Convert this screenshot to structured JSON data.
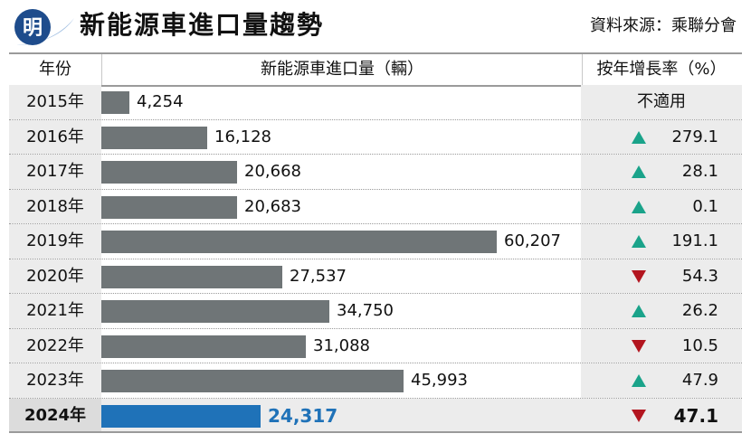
{
  "logo": {
    "text": "明",
    "colors": {
      "dark": "#1e4c8c",
      "light": "#9bbbe0"
    }
  },
  "title": "新能源車進口量趨勢",
  "source": "資料來源：乘聯分會",
  "headers": {
    "year": "年份",
    "volume": "新能源車進口量（輛）",
    "growth": "按年增長率（%）"
  },
  "colors": {
    "bar": "#6f7577",
    "highlight_bar": "#1f72b8",
    "up": "#1aa38a",
    "down": "#b3151f"
  },
  "chart_data": {
    "type": "bar",
    "orientation": "horizontal",
    "xlim": [
      0,
      60207
    ],
    "categories": [
      "2015年",
      "2016年",
      "2017年",
      "2018年",
      "2019年",
      "2020年",
      "2021年",
      "2022年",
      "2023年",
      "2024年"
    ],
    "values": [
      4254,
      16128,
      20668,
      20683,
      60207,
      27537,
      34750,
      31088,
      45993,
      24317
    ],
    "value_labels": [
      "4,254",
      "16,128",
      "20,668",
      "20,683",
      "60,207",
      "27,537",
      "34,750",
      "31,088",
      "45,993",
      "24,317"
    ],
    "growth": [
      {
        "dir": "none",
        "text": "不適用"
      },
      {
        "dir": "up",
        "text": "279.1"
      },
      {
        "dir": "up",
        "text": "28.1"
      },
      {
        "dir": "up",
        "text": "0.1"
      },
      {
        "dir": "up",
        "text": "191.1"
      },
      {
        "dir": "down",
        "text": "54.3"
      },
      {
        "dir": "up",
        "text": "26.2"
      },
      {
        "dir": "down",
        "text": "10.5"
      },
      {
        "dir": "up",
        "text": "47.9"
      },
      {
        "dir": "down",
        "text": "47.1"
      }
    ],
    "highlight_index": 9
  }
}
